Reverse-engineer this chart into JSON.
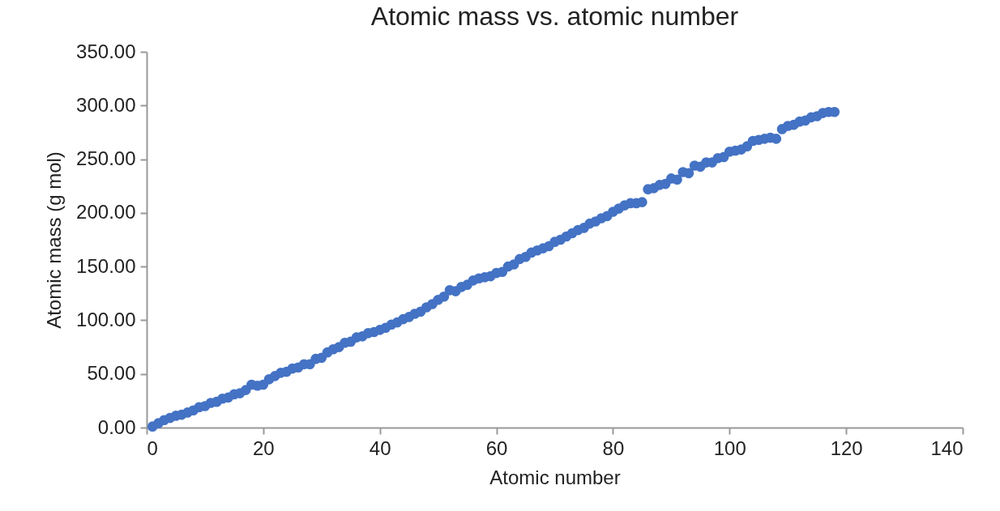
{
  "chart_data": {
    "type": "scatter",
    "title": "Atomic mass vs. atomic number",
    "xlabel": "Atomic number",
    "ylabel": "Atomic mass (g mol)",
    "x": [
      1,
      2,
      3,
      4,
      5,
      6,
      7,
      8,
      9,
      10,
      11,
      12,
      13,
      14,
      15,
      16,
      17,
      18,
      19,
      20,
      21,
      22,
      23,
      24,
      25,
      26,
      27,
      28,
      29,
      30,
      31,
      32,
      33,
      34,
      35,
      36,
      37,
      38,
      39,
      40,
      41,
      42,
      43,
      44,
      45,
      46,
      47,
      48,
      49,
      50,
      51,
      52,
      53,
      54,
      55,
      56,
      57,
      58,
      59,
      60,
      61,
      62,
      63,
      64,
      65,
      66,
      67,
      68,
      69,
      70,
      71,
      72,
      73,
      74,
      75,
      76,
      77,
      78,
      79,
      80,
      81,
      82,
      83,
      84,
      85,
      86,
      87,
      88,
      89,
      90,
      91,
      92,
      93,
      94,
      95,
      96,
      97,
      98,
      99,
      100,
      101,
      102,
      103,
      104,
      105,
      106,
      107,
      108,
      109,
      110,
      111,
      112,
      113,
      114,
      115,
      116,
      117,
      118
    ],
    "series": [
      {
        "color": "#4472c4",
        "values": [
          1,
          4,
          7,
          9,
          11,
          12,
          14,
          16,
          19,
          20,
          23,
          24,
          27,
          28,
          31,
          32,
          35,
          40,
          39,
          40,
          45,
          48,
          51,
          52,
          55,
          56,
          59,
          59,
          64,
          65,
          70,
          73,
          75,
          79,
          80,
          84,
          85,
          88,
          89,
          91,
          93,
          96,
          98,
          101,
          103,
          106,
          108,
          112,
          115,
          119,
          122,
          128,
          127,
          131,
          133,
          137,
          139,
          140,
          141,
          144,
          145,
          150,
          152,
          157,
          159,
          163,
          165,
          167,
          169,
          173,
          175,
          178,
          181,
          184,
          186,
          190,
          192,
          195,
          197,
          201,
          204,
          207,
          209,
          209,
          210,
          222,
          223,
          226,
          227,
          232,
          231,
          238,
          237,
          244,
          243,
          247,
          247,
          251,
          252,
          257,
          258,
          259,
          262,
          267,
          268,
          269,
          270,
          269,
          278,
          281,
          282,
          285,
          286,
          289,
          290,
          293,
          294,
          294
        ]
      }
    ],
    "xlim": [
      0,
      140
    ],
    "xticks": [
      0,
      20,
      40,
      60,
      80,
      100,
      120,
      140
    ],
    "ylim": [
      0,
      350
    ],
    "yticks": [
      {
        "value": 0,
        "label": "0.00"
      },
      {
        "value": 50,
        "label": "50.00"
      },
      {
        "value": 100,
        "label": "100.00"
      },
      {
        "value": 150,
        "label": "150.00"
      },
      {
        "value": 200,
        "label": "200.00"
      },
      {
        "value": 250,
        "label": "250.00"
      },
      {
        "value": 300,
        "label": "300.00"
      },
      {
        "value": 350,
        "label": "350.00"
      }
    ],
    "marker": "circle",
    "grid": false,
    "legend": false
  }
}
